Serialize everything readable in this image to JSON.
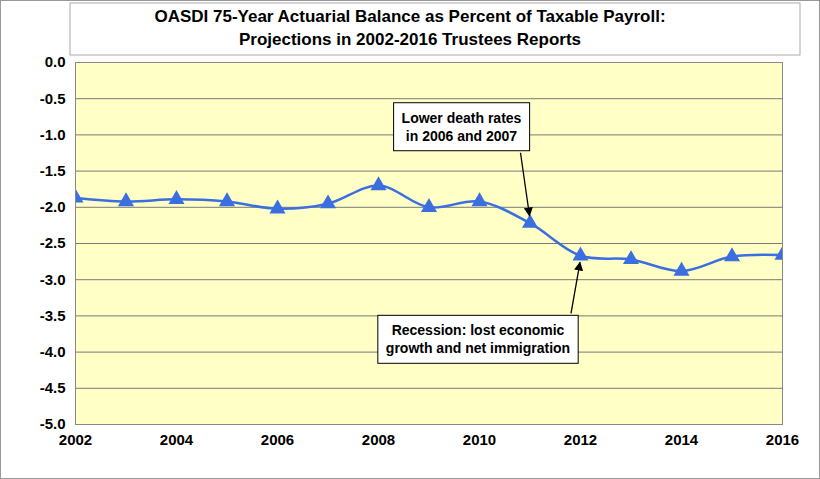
{
  "chart_data": {
    "type": "line",
    "title": [
      "OASDI 75-Year Actuarial Balance as Percent of Taxable Payroll:",
      "Projections in 2002-2016 Trustees Reports"
    ],
    "x": [
      2002,
      2003,
      2004,
      2005,
      2006,
      2007,
      2008,
      2009,
      2010,
      2011,
      2012,
      2013,
      2014,
      2015,
      2016
    ],
    "values": [
      -1.87,
      -1.92,
      -1.89,
      -1.92,
      -2.02,
      -1.95,
      -1.7,
      -2.0,
      -1.92,
      -2.22,
      -2.67,
      -2.72,
      -2.88,
      -2.68,
      -2.66
    ],
    "color": "#3b6fe0",
    "marker": "triangle",
    "xlim": [
      2002,
      2016
    ],
    "xticks": [
      2002,
      2004,
      2006,
      2008,
      2010,
      2012,
      2014,
      2016
    ],
    "ylim": [
      -5,
      0
    ],
    "yticks": [
      {
        "value": 0,
        "label": "0.0"
      },
      -0.5,
      {
        "value": -1,
        "label": "-1.0"
      },
      -1.5,
      {
        "value": -2,
        "label": "-2.0"
      },
      -2.5,
      {
        "value": -3,
        "label": "-3.0"
      },
      -3.5,
      {
        "value": -4,
        "label": "-4.0"
      },
      -4.5,
      {
        "value": -5,
        "label": "-5.0"
      }
    ],
    "grid": true,
    "annotations": [
      {
        "text": [
          "Lower death rates",
          "in 2006 and 2007"
        ],
        "x": 2011
      },
      {
        "text": [
          "Recession: lost economic",
          "growth and net immigration"
        ],
        "x": 2012
      }
    ]
  }
}
